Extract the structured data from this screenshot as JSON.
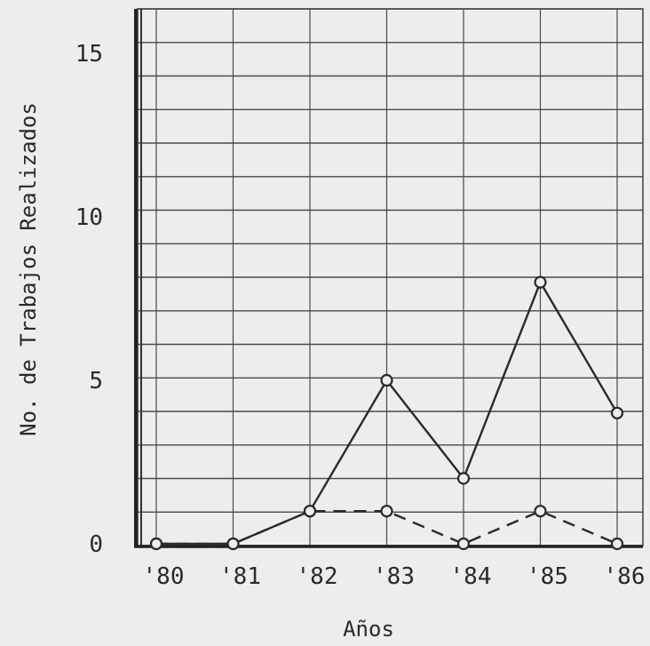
{
  "chart_data": {
    "type": "line",
    "xlabel": "Años",
    "ylabel": "No. de Trabajos Realizados",
    "categories": [
      "'80",
      "'81",
      "'82",
      "'83",
      "'84",
      "'85",
      "'86"
    ],
    "ylim": [
      0,
      16
    ],
    "yticks": [
      0,
      5,
      10,
      15
    ],
    "grid": true,
    "series": [
      {
        "style": "solid",
        "values": [
          0,
          0,
          1,
          5,
          2,
          8,
          4
        ]
      },
      {
        "style": "dashed",
        "values": [
          0,
          0,
          1,
          1,
          0,
          1,
          0
        ]
      }
    ]
  },
  "colors": {
    "ink": "#2a2a2a",
    "paper": "#eeecec",
    "grid": "#4a4a4a"
  }
}
